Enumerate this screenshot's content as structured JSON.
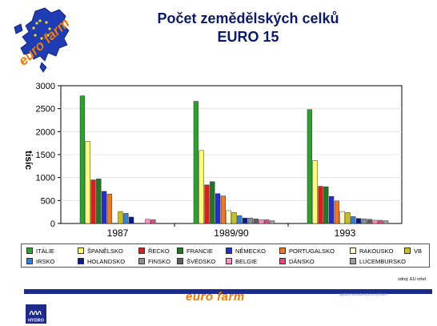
{
  "header": {
    "title_line1": "Počet zemědělských celků",
    "title_line2": "EURO 15",
    "logo_text": "euro farm"
  },
  "legend": {
    "items": [
      {
        "label": "ITÁLIE",
        "color": "#2ea02e"
      },
      {
        "label": "ŠPANĚLSKO",
        "color": "#ffff66"
      },
      {
        "label": "ŘECKO",
        "color": "#d91e1e"
      },
      {
        "label": "FRANCIE",
        "color": "#1e7a1e"
      },
      {
        "label": "NĚMECKO",
        "color": "#2030d0"
      },
      {
        "label": "PORTUGALSKO",
        "color": "#f07820"
      },
      {
        "label": "RAKOUSKO",
        "color": "#ffffcc"
      },
      {
        "label": "VB",
        "color": "#c8c020"
      },
      {
        "label": "IRSKO",
        "color": "#3080e0"
      },
      {
        "label": "HOLANDSKO",
        "color": "#0a1a90"
      },
      {
        "label": "FINSKO",
        "color": "#909090"
      },
      {
        "label": "ŠVÉDSKO",
        "color": "#606060"
      },
      {
        "label": "BELGIE",
        "color": "#ff90c8"
      },
      {
        "label": "DÁNSKO",
        "color": "#e84878"
      },
      {
        "label": "LUCEMBURSKO",
        "color": "#a0a0a0"
      }
    ]
  },
  "chart_data": {
    "type": "bar",
    "title": "Počet zemědělských celků EURO 15",
    "ylabel": "tisíc",
    "ylim": [
      0,
      3000
    ],
    "yticks": [
      "0",
      "500",
      "1000",
      "1500",
      "2000",
      "2500",
      "3000"
    ],
    "categories": [
      "1987",
      "1989/90",
      "1993"
    ],
    "series": [
      {
        "name": "ITÁLIE",
        "values": [
          2780,
          2660,
          2480
        ]
      },
      {
        "name": "ŠPANĚLSKO",
        "values": [
          1790,
          1590,
          1370
        ]
      },
      {
        "name": "ŘECKO",
        "values": [
          950,
          840,
          810
        ]
      },
      {
        "name": "FRANCIE",
        "values": [
          970,
          910,
          800
        ]
      },
      {
        "name": "NĚMECKO",
        "values": [
          700,
          650,
          590
        ]
      },
      {
        "name": "PORTUGALSKO",
        "values": [
          640,
          600,
          490
        ]
      },
      {
        "name": "RAKOUSKO",
        "values": [
          null,
          280,
          260
        ]
      },
      {
        "name": "VB",
        "values": [
          260,
          240,
          240
        ]
      },
      {
        "name": "IRSKO",
        "values": [
          220,
          170,
          150
        ]
      },
      {
        "name": "HOLANDSKO",
        "values": [
          140,
          120,
          110
        ]
      },
      {
        "name": "FINSKO",
        "values": [
          null,
          120,
          100
        ]
      },
      {
        "name": "ŠVÉDSKO",
        "values": [
          null,
          100,
          90
        ]
      },
      {
        "name": "BELGIE",
        "values": [
          90,
          80,
          70
        ]
      },
      {
        "name": "DÁNSKO",
        "values": [
          80,
          80,
          70
        ]
      },
      {
        "name": "LUCEMBURSKO",
        "values": [
          null,
          60,
          60
        ]
      }
    ]
  },
  "footer": {
    "source": "zdroj: EU ortel",
    "brand": "euro farm",
    "small_text": "agrární poradenství a výzkum",
    "company": "HYDRO"
  }
}
